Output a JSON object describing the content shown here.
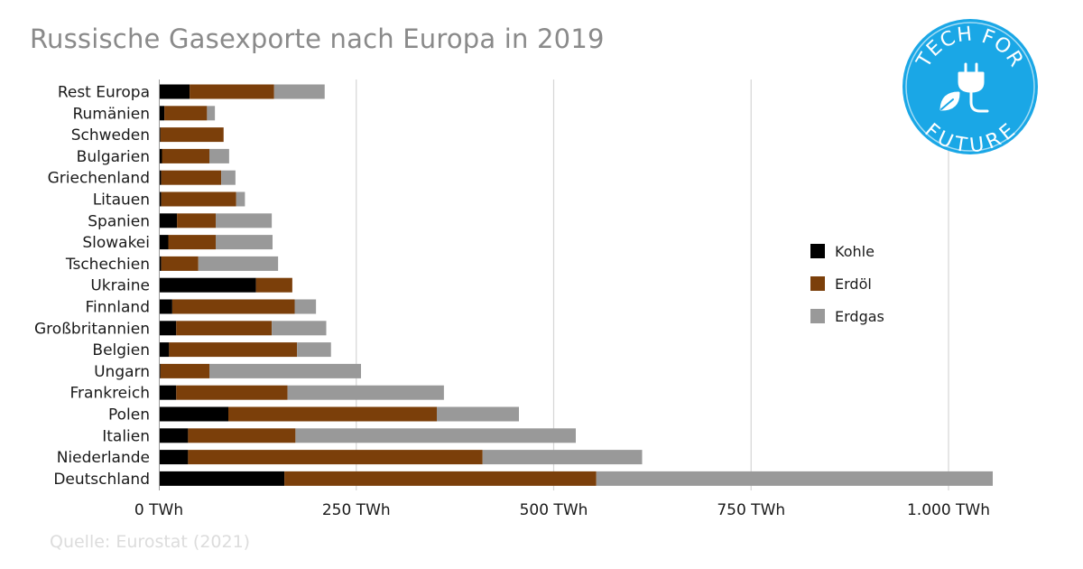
{
  "title": "Russische Gasexporte nach Europa in 2019",
  "source": "Quelle: Eurostat (2021)",
  "logo": {
    "text_top": "TECH FOR",
    "text_bottom": "FUTURE",
    "icon": "plug-leaf-icon",
    "color": "#1aa7e6"
  },
  "chart_data": {
    "type": "bar",
    "orientation": "horizontal",
    "stacked": true,
    "categories": [
      "Rest Europa",
      "Rumänien",
      "Schweden",
      "Bulgarien",
      "Griechenland",
      "Litauen",
      "Spanien",
      "Slowakei",
      "Tschechien",
      "Ukraine",
      "Finnland",
      "Großbritannien",
      "Belgien",
      "Ungarn",
      "Frankreich",
      "Polen",
      "Italien",
      "Niederlande",
      "Deutschland"
    ],
    "series": [
      {
        "name": "Kohle",
        "color": "#000000",
        "values": [
          39,
          7,
          2,
          4,
          3,
          3,
          23,
          12,
          3,
          123,
          17,
          22,
          13,
          2,
          22,
          88,
          37,
          37,
          159
        ]
      },
      {
        "name": "Erdöl",
        "color": "#7b3f0a",
        "values": [
          107,
          54,
          80,
          60,
          76,
          95,
          49,
          60,
          47,
          46,
          155,
          121,
          162,
          62,
          141,
          264,
          136,
          373,
          395
        ]
      },
      {
        "name": "Erdgas",
        "color": "#999999",
        "values": [
          64,
          10,
          0,
          25,
          18,
          11,
          71,
          72,
          101,
          0,
          27,
          69,
          43,
          192,
          198,
          104,
          355,
          202,
          502
        ]
      }
    ],
    "xaxis": {
      "ticks": [
        0,
        250,
        500,
        750,
        1000
      ],
      "tick_labels": [
        "0 TWh",
        "250 TWh",
        "500 TWh",
        "750 TWh",
        "1.000 TWh"
      ],
      "range": [
        0,
        1056
      ]
    },
    "grid": "vertical",
    "legend": {
      "placement": "right",
      "items": [
        "Kohle",
        "Erdöl",
        "Erdgas"
      ]
    }
  }
}
